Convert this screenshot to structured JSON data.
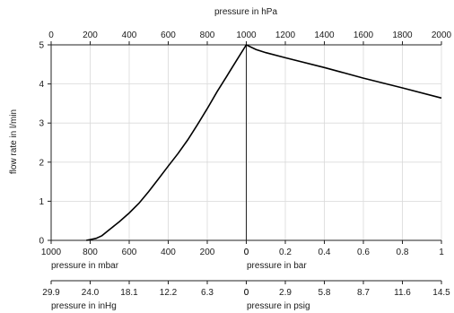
{
  "chart_data": {
    "type": "line",
    "ylabel": "flow rate in l/min",
    "ylim": [
      0,
      5
    ],
    "yticks": [
      "0",
      "1",
      "2",
      "3",
      "4",
      "5"
    ],
    "top_axis": {
      "label": "pressure in hPa",
      "range": [
        0,
        2000
      ],
      "ticks": [
        "0",
        "200",
        "400",
        "600",
        "800",
        "1000",
        "1200",
        "1400",
        "1600",
        "1800",
        "2000"
      ]
    },
    "bottom_axis_mbar": {
      "label": "pressure in mbar",
      "range": [
        1000,
        0
      ],
      "ticks": [
        "1000",
        "800",
        "600",
        "400",
        "200",
        "0"
      ]
    },
    "bottom_axis_bar": {
      "label": "pressure in bar",
      "range": [
        0,
        1
      ],
      "ticks": [
        "0",
        "0.2",
        "0.4",
        "0.6",
        "0.8",
        "1"
      ]
    },
    "inhg_axis": {
      "label": "pressure in inHg",
      "ticks": [
        "29.9",
        "24.0",
        "18.1",
        "12.2",
        "6.3",
        "0"
      ]
    },
    "psig_axis": {
      "label": "pressure in psig",
      "ticks": [
        "0",
        "2.9",
        "5.8",
        "8.7",
        "11.6",
        "14.5"
      ]
    },
    "series": [
      {
        "x": [
          180,
          200,
          230,
          260,
          300,
          350,
          400,
          450,
          500,
          550,
          600,
          650,
          700,
          750,
          800,
          850,
          900,
          950,
          1000,
          1050,
          1100,
          1200,
          1400,
          1600,
          1800,
          2000
        ],
        "y": [
          0,
          0.02,
          0.05,
          0.12,
          0.28,
          0.48,
          0.7,
          0.95,
          1.25,
          1.57,
          1.9,
          2.22,
          2.57,
          2.96,
          3.37,
          3.8,
          4.2,
          4.6,
          5.0,
          4.88,
          4.8,
          4.67,
          4.42,
          4.15,
          3.9,
          3.64
        ]
      }
    ],
    "grid": true
  }
}
